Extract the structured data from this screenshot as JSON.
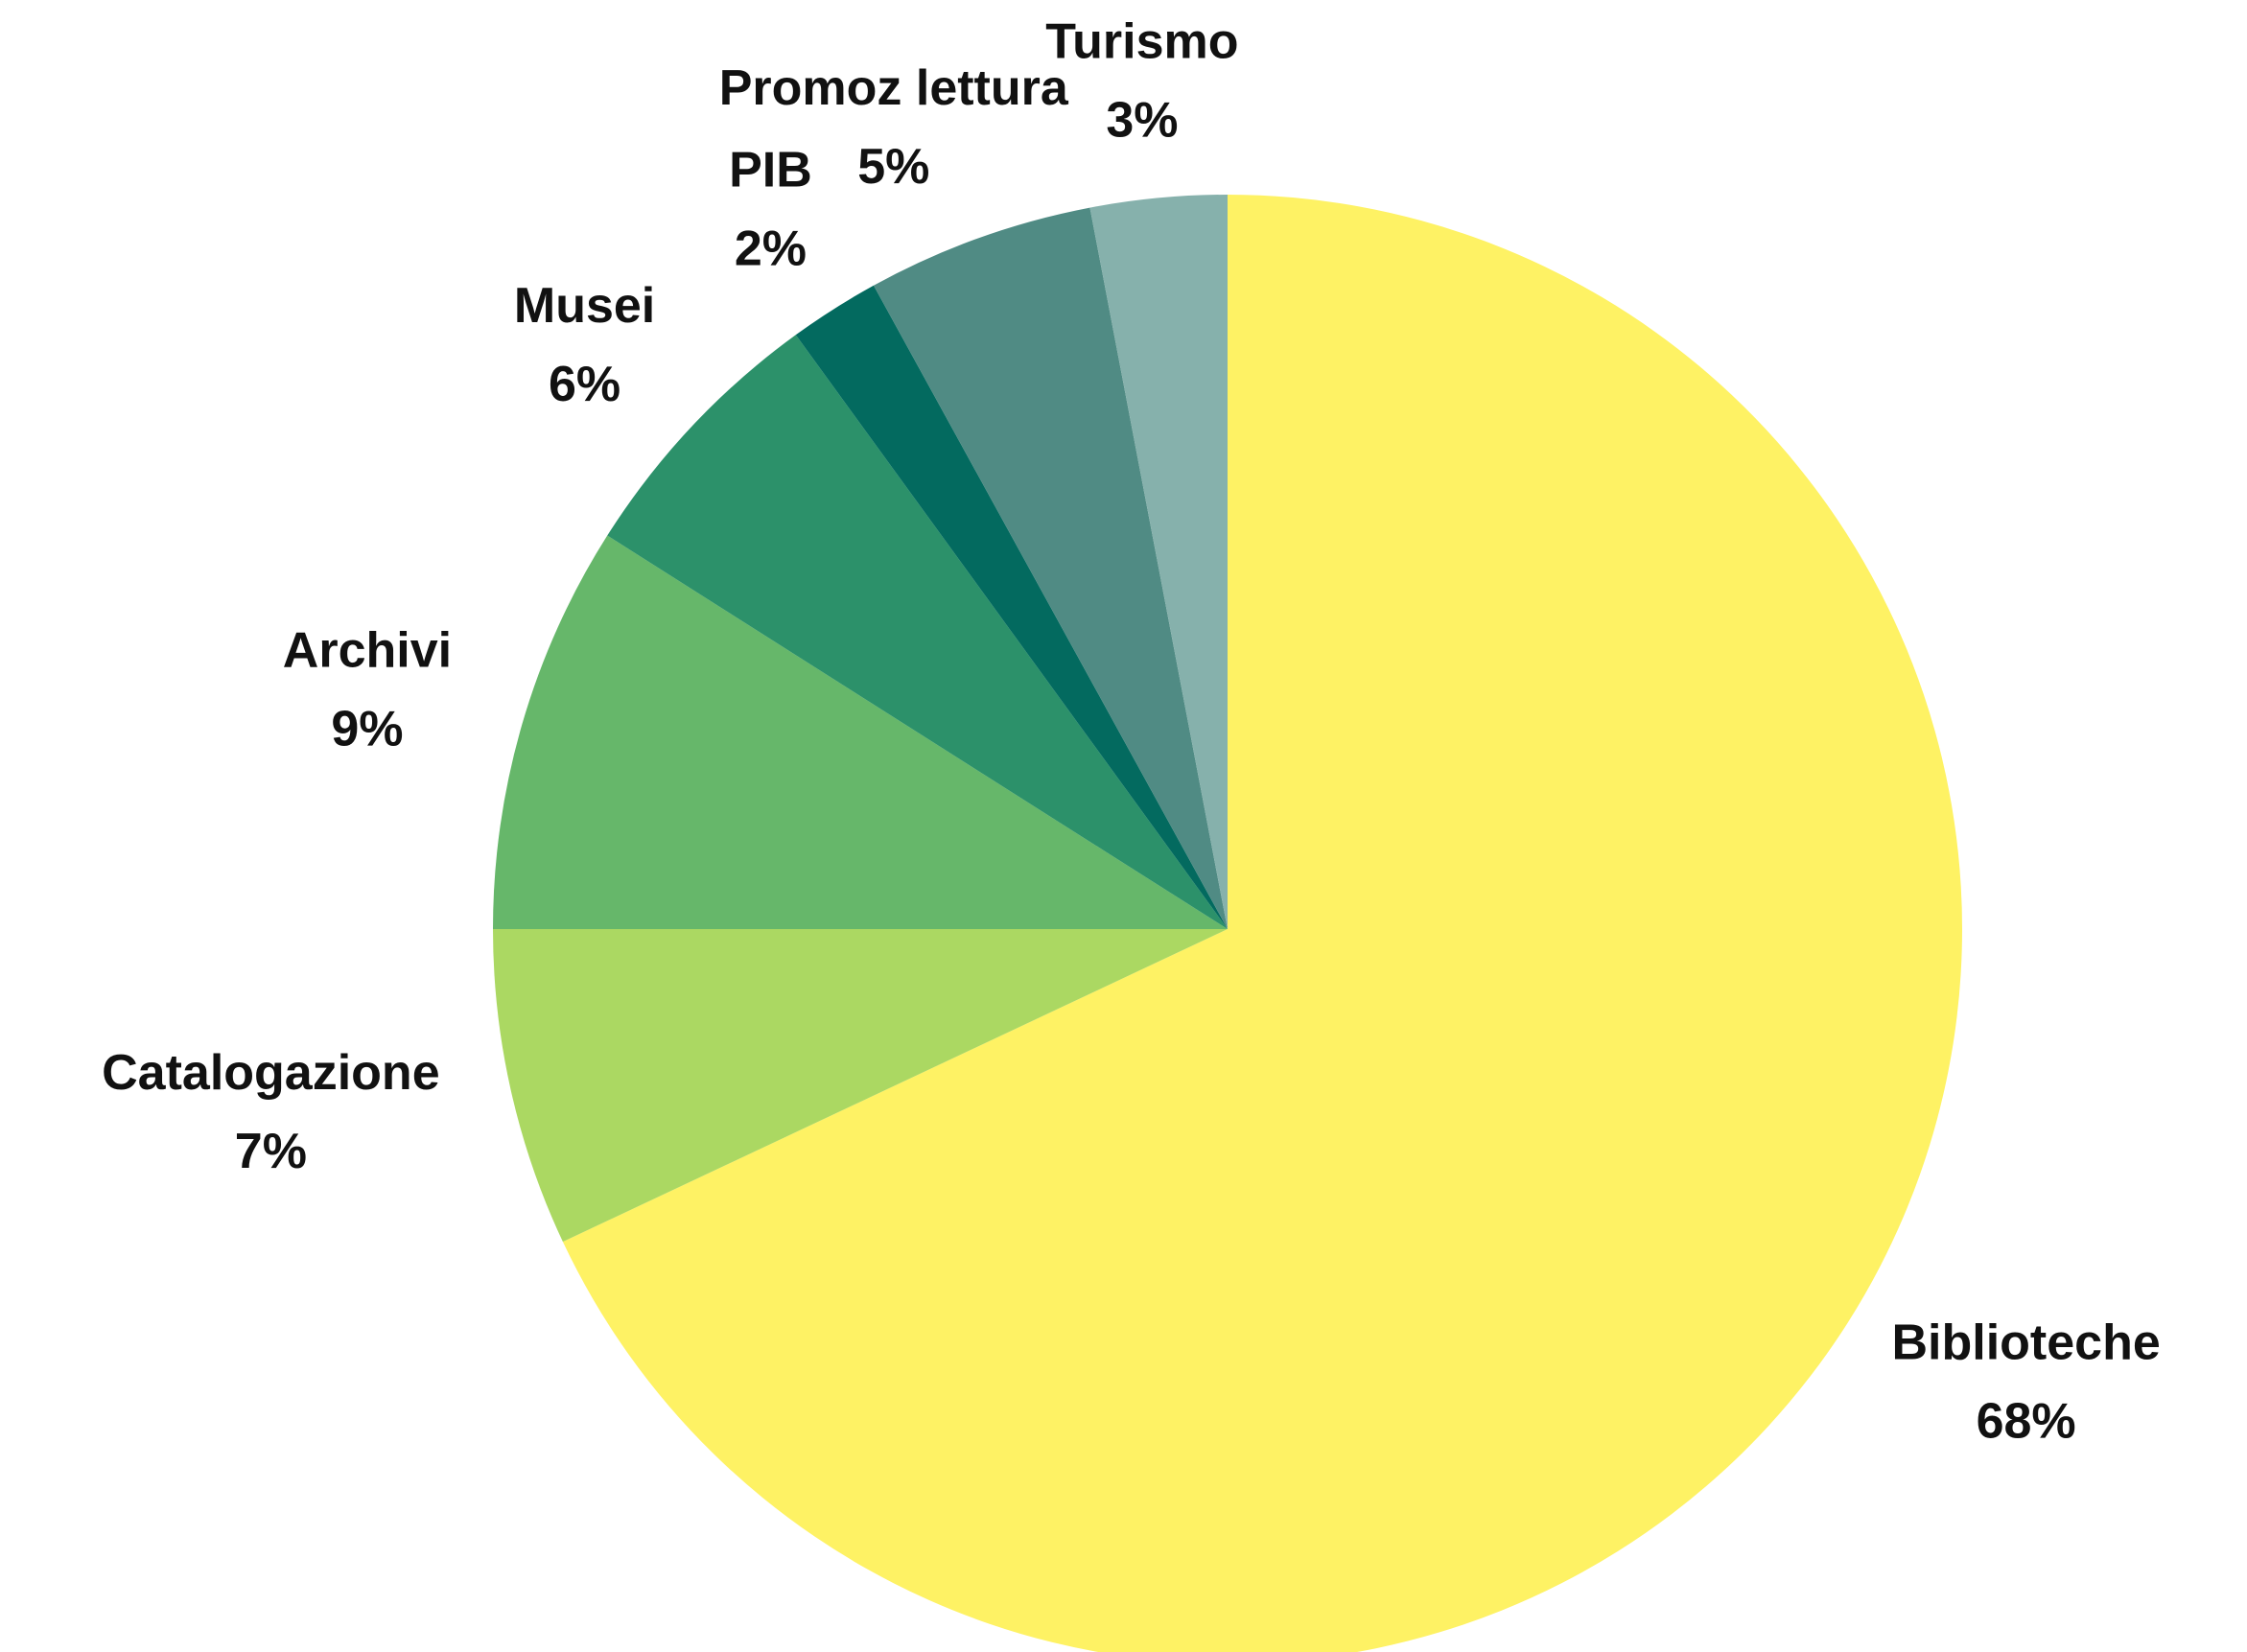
{
  "chart_data": {
    "type": "pie",
    "categories": [
      "Biblioteche",
      "Catalogazione",
      "Archivi",
      "Musei",
      "PIB",
      "Promoz lettura",
      "Turismo"
    ],
    "values": [
      68,
      7,
      9,
      6,
      2,
      5,
      3
    ],
    "value_labels": [
      "68%",
      "7%",
      "9%",
      "6%",
      "2%",
      "5%",
      "3%"
    ],
    "colors": [
      "#fef264",
      "#abd862",
      "#66b76a",
      "#2c916a",
      "#036a5f",
      "#508b84",
      "#86b1ac"
    ]
  }
}
